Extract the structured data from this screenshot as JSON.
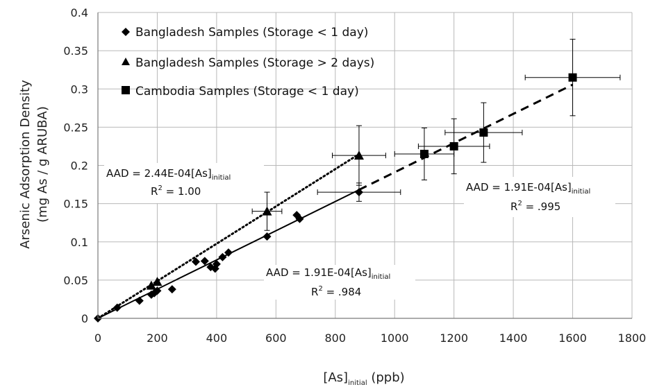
{
  "chart_data": {
    "type": "scatter",
    "xlabel": "[As]",
    "xlabel_sub": "initial",
    "xlabel_unit": "(ppb)",
    "ylabel_line1": "Arsenic Adsorption Density",
    "ylabel_line2": "(mg As / g ARUBA)",
    "xlim": [
      0,
      1800
    ],
    "ylim": [
      0,
      0.4
    ],
    "x_ticks": [
      0,
      200,
      400,
      600,
      800,
      1000,
      1200,
      1400,
      1600,
      1800
    ],
    "x_tick_labels": [
      "0",
      "200",
      "400",
      "600",
      "800",
      "1000",
      "1200",
      "1400",
      "1600",
      "1800"
    ],
    "y_ticks": [
      0,
      0.05,
      0.1,
      0.15,
      0.2,
      0.25,
      0.3,
      0.35,
      0.4
    ],
    "y_tick_labels": [
      "0",
      "0.05",
      "0.1",
      "0.15",
      "0.2",
      "0.25",
      "0.3",
      "0.35",
      "0.4"
    ],
    "grid": true,
    "legend_position": "top-left",
    "series": [
      {
        "name": "Bangladesh Samples (Storage < 1 day)",
        "marker": "diamond",
        "points": [
          {
            "x": 0,
            "y": 0.0
          },
          {
            "x": 65,
            "y": 0.014
          },
          {
            "x": 140,
            "y": 0.023
          },
          {
            "x": 180,
            "y": 0.031
          },
          {
            "x": 190,
            "y": 0.033
          },
          {
            "x": 200,
            "y": 0.036
          },
          {
            "x": 250,
            "y": 0.038
          },
          {
            "x": 330,
            "y": 0.074
          },
          {
            "x": 360,
            "y": 0.075
          },
          {
            "x": 380,
            "y": 0.067
          },
          {
            "x": 395,
            "y": 0.065
          },
          {
            "x": 400,
            "y": 0.071
          },
          {
            "x": 420,
            "y": 0.08
          },
          {
            "x": 440,
            "y": 0.086
          },
          {
            "x": 570,
            "y": 0.107
          },
          {
            "x": 670,
            "y": 0.135
          },
          {
            "x": 680,
            "y": 0.13
          },
          {
            "x": 880,
            "y": 0.165,
            "xerr": 140,
            "yerr": 0.012
          }
        ]
      },
      {
        "name": "Bangladesh Samples (Storage > 2 days)",
        "marker": "triangle",
        "points": [
          {
            "x": 180,
            "y": 0.043
          },
          {
            "x": 200,
            "y": 0.048
          },
          {
            "x": 570,
            "y": 0.14,
            "xerr": 50,
            "yerr": 0.025
          },
          {
            "x": 880,
            "y": 0.213,
            "xerr": 90,
            "yerr": 0.039
          }
        ]
      },
      {
        "name": "Cambodia Samples (Storage < 1 day)",
        "marker": "square",
        "points": [
          {
            "x": 1100,
            "y": 0.215,
            "xerr": 100,
            "yerr": 0.034
          },
          {
            "x": 1200,
            "y": 0.225,
            "xerr": 120,
            "yerr": 0.036
          },
          {
            "x": 1300,
            "y": 0.243,
            "xerr": 130,
            "yerr": 0.039
          },
          {
            "x": 1600,
            "y": 0.315,
            "xerr": 160,
            "yerr": 0.05
          }
        ]
      }
    ],
    "trendlines": [
      {
        "style": "dotted",
        "slope": 0.000244,
        "x_range": [
          0,
          880
        ]
      },
      {
        "style": "solid",
        "slope": 0.000191,
        "x_range": [
          0,
          880
        ]
      },
      {
        "style": "dashed",
        "slope": 0.000191,
        "x_range": [
          880,
          1600
        ]
      }
    ],
    "annotations": [
      {
        "eq_prefix": "AAD = 2.44E-04[As]",
        "eq_sub": "initial",
        "r2_prefix": "R",
        "r2_value": " = 1.00"
      },
      {
        "eq_prefix": "AAD = 1.91E-04[As]",
        "eq_sub": "initial",
        "r2_prefix": "R",
        "r2_value": "  = .995"
      },
      {
        "eq_prefix": "AAD = 1.91E-04[As]",
        "eq_sub": "initial",
        "r2_prefix": "R",
        "r2_value": "  = .984"
      }
    ]
  }
}
